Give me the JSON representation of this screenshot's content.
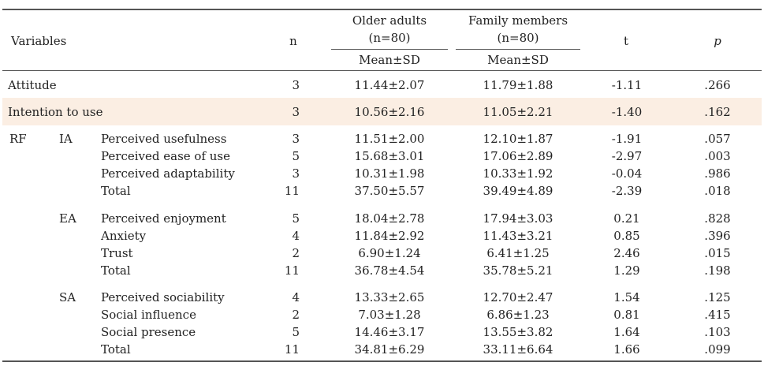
{
  "header": {
    "variables": "Variables",
    "n": "n",
    "older_adults": "Older adults",
    "older_adults_n": "(n=80)",
    "family_members": "Family members",
    "family_members_n": "(n=80)",
    "t": "t",
    "p": "p",
    "mean_sd_1": "Mean±SD",
    "mean_sd_2": "Mean±SD"
  },
  "rows": [
    {
      "label": "Attitude",
      "n": "3",
      "older": "11.44±2.07",
      "family": "11.79±1.88",
      "t": "-1.11",
      "p": ".266"
    },
    {
      "label": "Intention to use",
      "n": "3",
      "older": "10.56±2.16",
      "family": "11.05±2.21",
      "t": "-1.40",
      "p": ".162"
    },
    {
      "rf": "RF",
      "group": "IA",
      "label": "Perceived usefulness",
      "n": "3",
      "older": "11.51±2.00",
      "family": "12.10±1.87",
      "t": "-1.91",
      "p": ".057"
    },
    {
      "label": "Perceived ease of use",
      "n": "5",
      "older": "15.68±3.01",
      "family": "17.06±2.89",
      "t": "-2.97",
      "p": ".003"
    },
    {
      "label": "Perceived adaptability",
      "n": "3",
      "older": "10.31±1.98",
      "family": "10.33±1.92",
      "t": "-0.04",
      "p": ".986"
    },
    {
      "label": "Total",
      "n": "11",
      "older": "37.50±5.57",
      "family": "39.49±4.89",
      "t": "-2.39",
      "p": ".018"
    },
    {
      "group": "EA",
      "label": "Perceived enjoyment",
      "n": "5",
      "older": "18.04±2.78",
      "family": "17.94±3.03",
      "t": "0.21",
      "p": ".828"
    },
    {
      "label": "Anxiety",
      "n": "4",
      "older": "11.84±2.92",
      "family": "11.43±3.21",
      "t": "0.85",
      "p": ".396"
    },
    {
      "label": "Trust",
      "n": "2",
      "older": "6.90±1.24",
      "family": "6.41±1.25",
      "t": "2.46",
      "p": ".015"
    },
    {
      "label": "Total",
      "n": "11",
      "older": "36.78±4.54",
      "family": "35.78±5.21",
      "t": "1.29",
      "p": ".198"
    },
    {
      "group": "SA",
      "label": "Perceived sociability",
      "n": "4",
      "older": "13.33±2.65",
      "family": "12.70±2.47",
      "t": "1.54",
      "p": ".125"
    },
    {
      "label": "Social influence",
      "n": "2",
      "older": "7.03±1.28",
      "family": "6.86±1.23",
      "t": "0.81",
      "p": ".415"
    },
    {
      "label": "Social presence",
      "n": "5",
      "older": "14.46±3.17",
      "family": "13.55±3.82",
      "t": "1.64",
      "p": ".103"
    },
    {
      "label": "Total",
      "n": "11",
      "older": "34.81±6.29",
      "family": "33.11±6.64",
      "t": "1.66",
      "p": ".099"
    }
  ]
}
